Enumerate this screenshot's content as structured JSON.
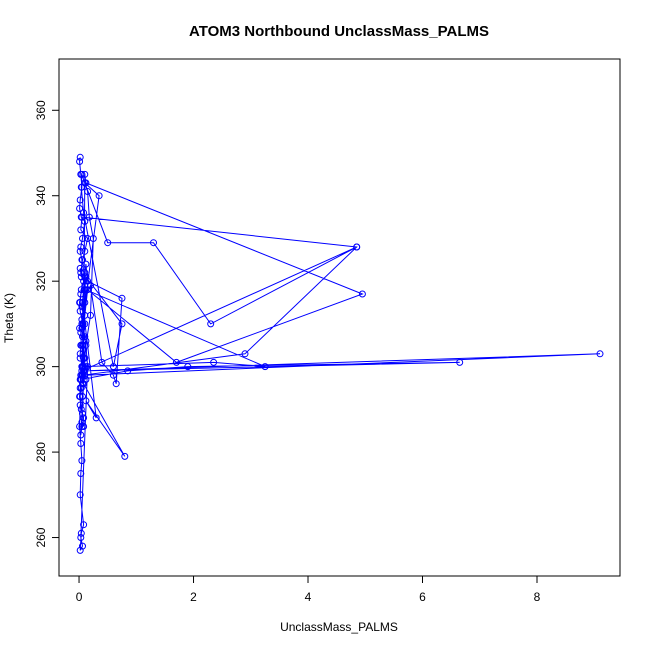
{
  "chart_data": {
    "type": "line",
    "title": "ATOM3 Northbound UnclassMass_PALMS",
    "xlabel": "UnclassMass_PALMS",
    "ylabel": "Theta (K)",
    "xlim": [
      -0.35,
      9.45
    ],
    "ylim": [
      251,
      372
    ],
    "xticks": [
      0,
      2,
      4,
      6,
      8
    ],
    "yticks": [
      260,
      280,
      300,
      320,
      340,
      360
    ],
    "grid": false,
    "color": "#0000ff",
    "markers": "open-circle",
    "series": [
      {
        "x": [
          0.02,
          0.01,
          0.03,
          0.05,
          0.02,
          0.01,
          0.04,
          0.1,
          0.06,
          0.03,
          0.02,
          0.05,
          0.04,
          0.02,
          0.1,
          0.03,
          0.01,
          0.02,
          0.05,
          0.01,
          0.1,
          0.03,
          0.08,
          0.02,
          0.12,
          0.05,
          0.02,
          0.04,
          0.06,
          0.02,
          0.01,
          0.03,
          0.05,
          0.03,
          0.02,
          0.08,
          0.04,
          0.02,
          0.06,
          0.03,
          0.15,
          0.12,
          0.07,
          0.09,
          0.1,
          0.06,
          0.3,
          0.12,
          0.8,
          0.08,
          0.06,
          0.2,
          0.25,
          0.18,
          0.15,
          0.05,
          0.04,
          0.08,
          0.6,
          0.75,
          0.12,
          0.1,
          0.05,
          0.35,
          0.1,
          0.5,
          1.3,
          2.3,
          4.85,
          0.05,
          0.08,
          0.06,
          0.15,
          1.7,
          4.95,
          0.12,
          0.1,
          0.08,
          2.35,
          3.25,
          0.12,
          0.1,
          0.06,
          0.05,
          0.12,
          0.1,
          9.1,
          0.08,
          0.06,
          0.07,
          0.1,
          0.05,
          0.2,
          0.4,
          0.6,
          0.65,
          0.75,
          0.15,
          0.12,
          0.1,
          0.05,
          0.1,
          0.03,
          0.85,
          1.9,
          6.65,
          0.08,
          0.06,
          2.9,
          4.85,
          0.05,
          0.03,
          0.15,
          0.1,
          0.06,
          0.03,
          0.08,
          0.04,
          0.02,
          0.1,
          0.05,
          0.03,
          0.04,
          0.02,
          0.05,
          0.03,
          0.02,
          0.01,
          0.04,
          0.08,
          0.05,
          0.03,
          0.12,
          0.1,
          0.06,
          0.04,
          0.02,
          0.06,
          0.08,
          0.05
        ],
        "y": [
          349,
          348,
          345,
          342,
          339,
          337,
          335,
          334,
          330,
          328,
          327,
          325,
          321,
          323,
          319,
          317,
          315,
          313,
          311,
          309,
          307,
          305,
          304,
          302,
          300,
          298,
          297,
          295,
          293,
          291,
          286,
          282,
          278,
          275,
          270,
          263,
          261,
          257,
          258,
          260,
          300,
          305,
          310,
          318,
          322,
          315,
          288,
          292,
          279,
          296,
          300,
          312,
          330,
          335,
          341,
          345,
          342,
          336,
          300,
          310,
          321,
          318,
          309,
          340,
          343,
          329,
          329,
          310,
          328,
          299,
          302,
          307,
          318,
          301,
          317,
          343,
          345,
          300,
          301,
          300,
          318,
          315,
          305,
          299,
          297,
          298,
          303,
          299,
          296,
          305,
          310,
          314,
          319,
          301,
          298,
          296,
          316,
          320,
          324,
          321,
          300,
          299,
          297,
          299,
          300,
          301,
          299,
          298,
          303,
          328,
          335,
          332,
          330,
          327,
          325,
          322,
          320,
          318,
          315,
          312,
          310,
          308,
          305,
          303,
          300,
          298,
          295,
          293,
          290,
          288,
          286,
          284,
          306,
          302,
          300,
          297,
          293,
          289,
          286,
          287
        ]
      }
    ]
  }
}
